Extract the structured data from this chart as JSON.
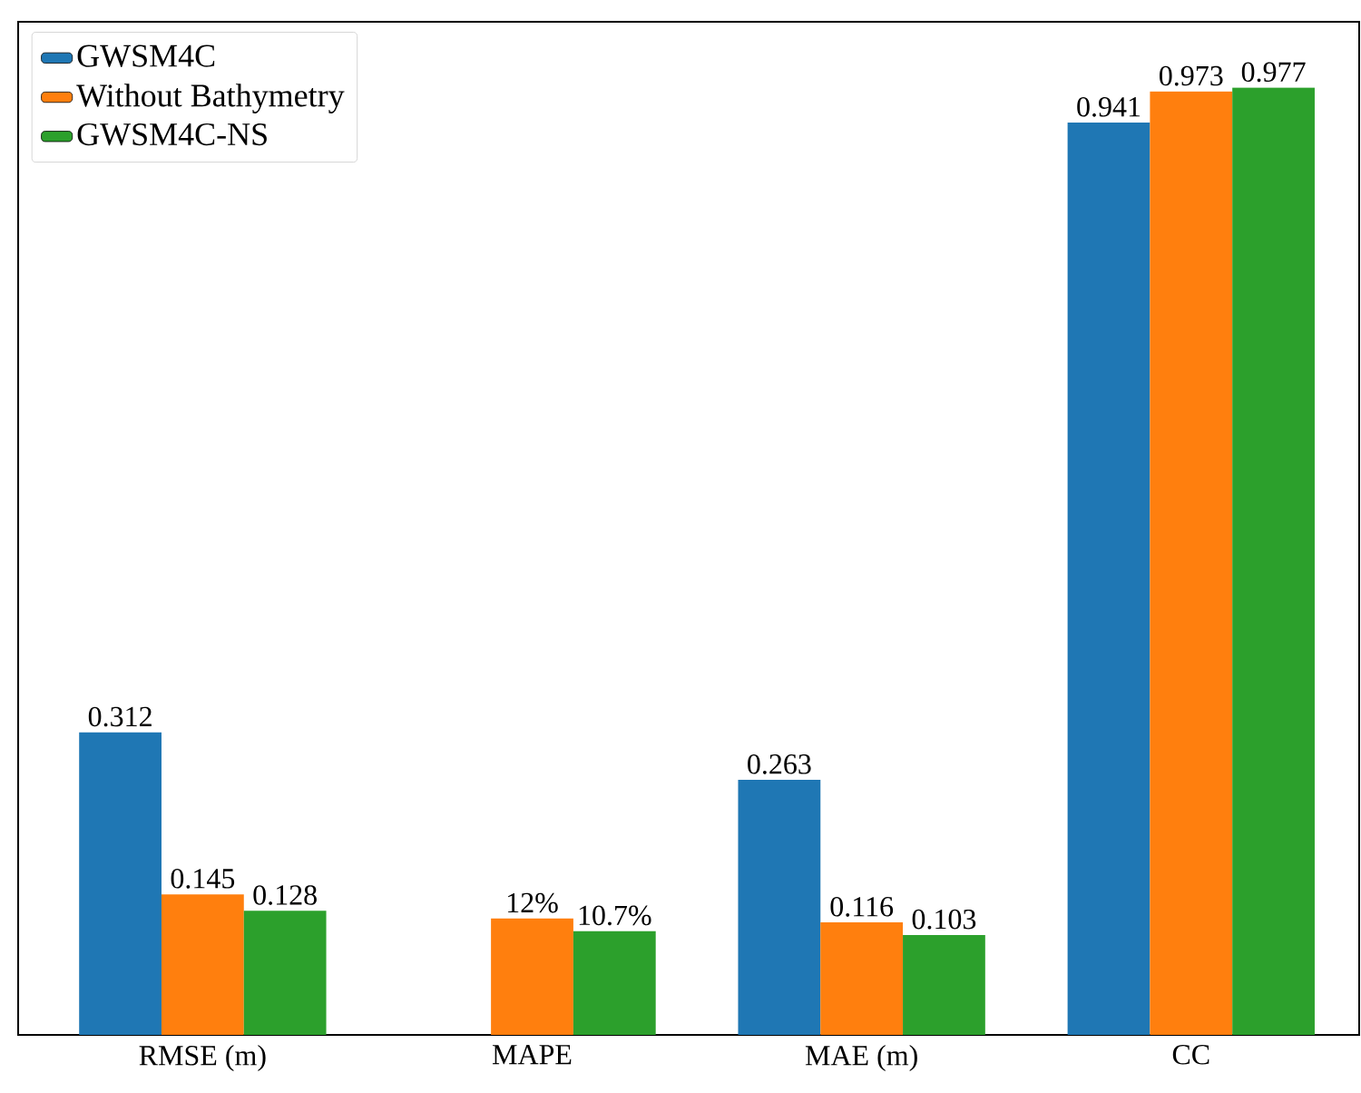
{
  "chart_data": {
    "type": "bar",
    "categories": [
      "RMSE (m)",
      "MAPE",
      "MAE (m)",
      "CC"
    ],
    "series": [
      {
        "name": "GWSM4C",
        "color": "#1f77b4",
        "values": [
          0.312,
          null,
          0.263,
          0.941
        ],
        "value_labels": [
          "0.312",
          null,
          "0.263",
          "0.941"
        ]
      },
      {
        "name": "Without Bathymetry",
        "color": "#ff7f0e",
        "values": [
          0.145,
          0.12,
          0.116,
          0.973
        ],
        "value_labels": [
          "0.145",
          "12%",
          "0.116",
          "0.973"
        ]
      },
      {
        "name": "GWSM4C-NS",
        "color": "#2ca02c",
        "values": [
          0.128,
          0.107,
          0.103,
          0.977
        ],
        "value_labels": [
          "0.128",
          "10.7%",
          "0.103",
          "0.977"
        ]
      }
    ],
    "ylim": [
      0,
      1.045
    ],
    "tick_labels": "x",
    "legend": "top left"
  }
}
